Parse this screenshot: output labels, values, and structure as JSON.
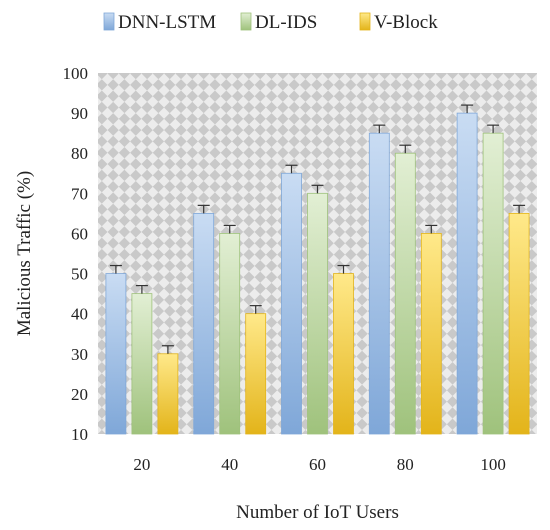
{
  "chart_data": {
    "type": "bar",
    "categories": [
      "20",
      "40",
      "60",
      "80",
      "100"
    ],
    "series": [
      {
        "name": "DNN-LSTM",
        "values": [
          50,
          65,
          75,
          85,
          90
        ],
        "error": 2,
        "color_top": "#c9dcf3",
        "color_bottom": "#7fa7d8"
      },
      {
        "name": "DL-IDS",
        "values": [
          45,
          60,
          70,
          80,
          85
        ],
        "error": 2,
        "color_top": "#e2efd4",
        "color_bottom": "#9fc27c"
      },
      {
        "name": "V-Block",
        "values": [
          30,
          40,
          50,
          60,
          65
        ],
        "error": 2,
        "color_top": "#ffe98a",
        "color_bottom": "#e3b41a"
      }
    ],
    "title": "",
    "xlabel": "Number of  IoT Users",
    "ylabel": "Malicious Traffic (%)",
    "ylim": [
      10,
      100
    ],
    "yticks": [
      "10",
      "20",
      "30",
      "40",
      "50",
      "60",
      "70",
      "80",
      "90",
      "100"
    ],
    "grid": false,
    "legend_position": "top",
    "background_pattern": "diamond-checker"
  }
}
